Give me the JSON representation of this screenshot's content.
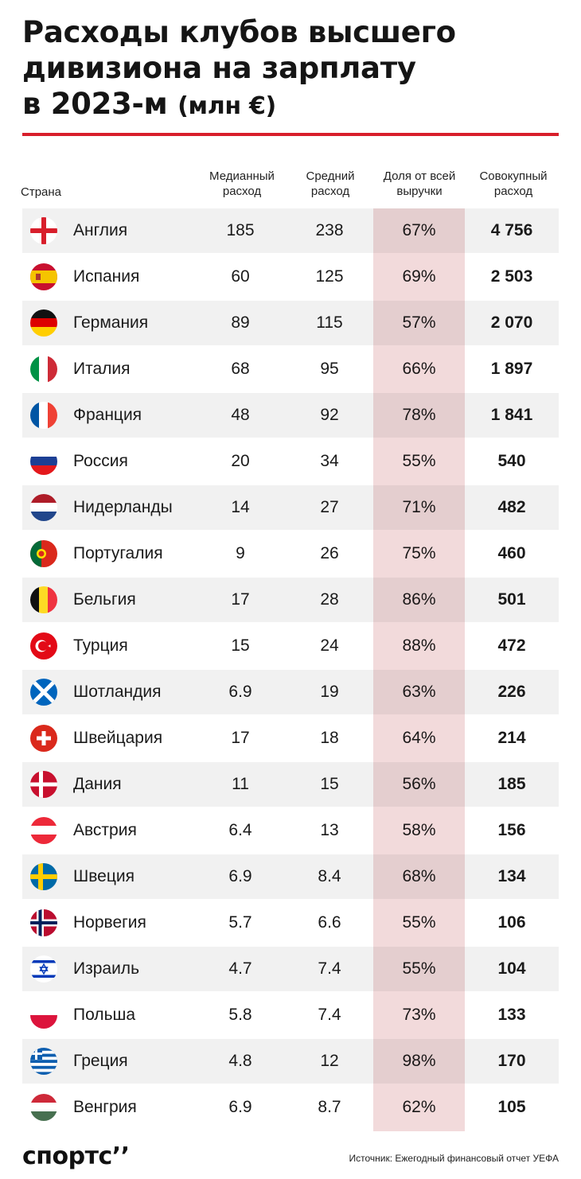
{
  "title": {
    "line1": "Расходы клубов высшего",
    "line2": "дивизиона на зарплату",
    "line3": "в 2023-м",
    "unit": "(млн €)"
  },
  "headers": {
    "country": "Страна",
    "median": "Медианный расход",
    "average": "Средний расход",
    "share": "Доля от всей выручки",
    "total": "Совокупный расход"
  },
  "colors": {
    "accent": "#d81e2b",
    "share_column_bg": "#f2dadb",
    "row_alt_bg": "#f1f1f1"
  },
  "chart_data": {
    "type": "table",
    "columns": [
      "Страна",
      "Медианный расход",
      "Средний расход",
      "Доля от всей выручки",
      "Совокупный расход"
    ],
    "rows": [
      {
        "country": "Англия",
        "flag": "england-flag-icon",
        "median": "185",
        "average": "238",
        "share": "67%",
        "total": "4 756"
      },
      {
        "country": "Испания",
        "flag": "spain-flag-icon",
        "median": "60",
        "average": "125",
        "share": "69%",
        "total": "2 503"
      },
      {
        "country": "Германия",
        "flag": "germany-flag-icon",
        "median": "89",
        "average": "115",
        "share": "57%",
        "total": "2 070"
      },
      {
        "country": "Италия",
        "flag": "italy-flag-icon",
        "median": "68",
        "average": "95",
        "share": "66%",
        "total": "1 897"
      },
      {
        "country": "Франция",
        "flag": "france-flag-icon",
        "median": "48",
        "average": "92",
        "share": "78%",
        "total": "1 841"
      },
      {
        "country": "Россия",
        "flag": "russia-flag-icon",
        "median": "20",
        "average": "34",
        "share": "55%",
        "total": "540"
      },
      {
        "country": "Нидерланды",
        "flag": "netherlands-flag-icon",
        "median": "14",
        "average": "27",
        "share": "71%",
        "total": "482"
      },
      {
        "country": "Португалия",
        "flag": "portugal-flag-icon",
        "median": "9",
        "average": "26",
        "share": "75%",
        "total": "460"
      },
      {
        "country": "Бельгия",
        "flag": "belgium-flag-icon",
        "median": "17",
        "average": "28",
        "share": "86%",
        "total": "501"
      },
      {
        "country": "Турция",
        "flag": "turkey-flag-icon",
        "median": "15",
        "average": "24",
        "share": "88%",
        "total": "472"
      },
      {
        "country": "Шотландия",
        "flag": "scotland-flag-icon",
        "median": "6.9",
        "average": "19",
        "share": "63%",
        "total": "226"
      },
      {
        "country": "Швейцария",
        "flag": "switzerland-flag-icon",
        "median": "17",
        "average": "18",
        "share": "64%",
        "total": "214"
      },
      {
        "country": "Дания",
        "flag": "denmark-flag-icon",
        "median": "11",
        "average": "15",
        "share": "56%",
        "total": "185"
      },
      {
        "country": "Австрия",
        "flag": "austria-flag-icon",
        "median": "6.4",
        "average": "13",
        "share": "58%",
        "total": "156"
      },
      {
        "country": "Швеция",
        "flag": "sweden-flag-icon",
        "median": "6.9",
        "average": "8.4",
        "share": "68%",
        "total": "134"
      },
      {
        "country": "Норвегия",
        "flag": "norway-flag-icon",
        "median": "5.7",
        "average": "6.6",
        "share": "55%",
        "total": "106"
      },
      {
        "country": "Израиль",
        "flag": "israel-flag-icon",
        "median": "4.7",
        "average": "7.4",
        "share": "55%",
        "total": "104"
      },
      {
        "country": "Польша",
        "flag": "poland-flag-icon",
        "median": "5.8",
        "average": "7.4",
        "share": "73%",
        "total": "133"
      },
      {
        "country": "Греция",
        "flag": "greece-flag-icon",
        "median": "4.8",
        "average": "12",
        "share": "98%",
        "total": "170"
      },
      {
        "country": "Венгрия",
        "flag": "hungary-flag-icon",
        "median": "6.9",
        "average": "8.7",
        "share": "62%",
        "total": "105"
      }
    ]
  },
  "footer": {
    "logo": "спортс",
    "logo_mark": "’’",
    "source": "Источник: Ежегодный финансовый отчет УЕФА"
  }
}
